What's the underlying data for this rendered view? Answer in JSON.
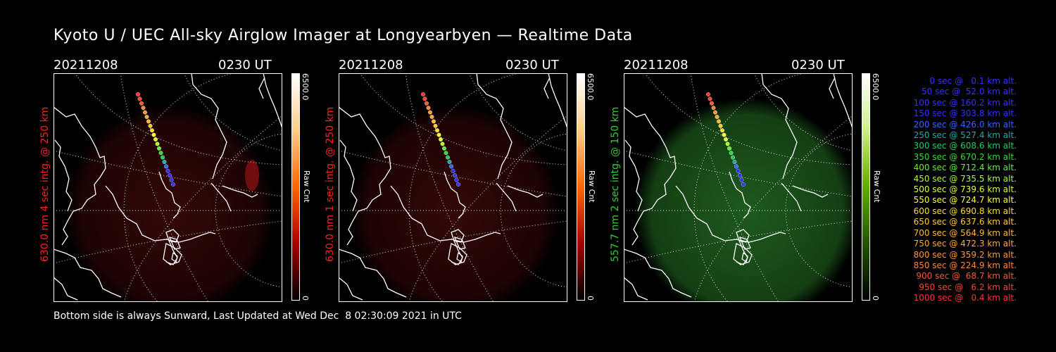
{
  "title": "Kyoto U / UEC All-sky Airglow Imager at Longyearbyen — Realtime Data",
  "footer": "Bottom side is always Sunward, Last Updated at Wed Dec  8 02:30:09 2021 in UTC",
  "panels": [
    {
      "date": "20211208",
      "time": "0230 UT",
      "ylabel": "630.0 nm 4 sec intg. @ 250 km",
      "label_color": "#ff2020",
      "cbar_max": "6500.0",
      "cbar_min": "0",
      "cbar_unit": "Raw Cnt",
      "glow": "red"
    },
    {
      "date": "20211208",
      "time": "0230 UT",
      "ylabel": "630.0 nm 1 sec intg. @ 250 km",
      "label_color": "#ff2020",
      "cbar_max": "6500.0",
      "cbar_min": "0",
      "cbar_unit": "Raw Cnt",
      "glow": "red"
    },
    {
      "date": "20211208",
      "time": "0230 UT",
      "ylabel": "557.7 nm 2 sec intg. @ 150 km",
      "label_color": "#33cc33",
      "cbar_max": "6500.0",
      "cbar_min": "0",
      "cbar_unit": "Raw Cnt",
      "glow": "green"
    }
  ],
  "legend": [
    {
      "text": "   0 sec @   0.1 km alt.",
      "color": "#3333ff"
    },
    {
      "text": "  50 sec @  52.0 km alt.",
      "color": "#3333ff"
    },
    {
      "text": " 100 sec @ 160.2 km alt.",
      "color": "#3333ff"
    },
    {
      "text": " 150 sec @ 303.8 km alt.",
      "color": "#3333ff"
    },
    {
      "text": " 200 sec @ 426.0 km alt.",
      "color": "#3366ff"
    },
    {
      "text": " 250 sec @ 527.4 km alt.",
      "color": "#22aaaa"
    },
    {
      "text": " 300 sec @ 608.6 km alt.",
      "color": "#22cc66"
    },
    {
      "text": " 350 sec @ 670.2 km alt.",
      "color": "#33dd33"
    },
    {
      "text": " 400 sec @ 712.4 km alt.",
      "color": "#66ee33"
    },
    {
      "text": " 450 sec @ 735.5 km alt.",
      "color": "#aaff33"
    },
    {
      "text": " 500 sec @ 739.6 km alt.",
      "color": "#ddff33"
    },
    {
      "text": " 550 sec @ 724.7 km alt.",
      "color": "#ffff33"
    },
    {
      "text": " 600 sec @ 690.8 km alt.",
      "color": "#ffdd22"
    },
    {
      "text": " 650 sec @ 637.6 km alt.",
      "color": "#ffcc33"
    },
    {
      "text": " 700 sec @ 564.9 km alt.",
      "color": "#ffbb33"
    },
    {
      "text": " 750 sec @ 472.3 km alt.",
      "color": "#ffaa33"
    },
    {
      "text": " 800 sec @ 359.2 km alt.",
      "color": "#ff9933"
    },
    {
      "text": " 850 sec @ 224.9 km alt.",
      "color": "#ff8833"
    },
    {
      "text": " 900 sec @  68.7 km alt.",
      "color": "#ff5533"
    },
    {
      "text": " 950 sec @   6.2 km alt.",
      "color": "#ff4433"
    },
    {
      "text": "1000 sec @   0.4 km alt.",
      "color": "#ff3333"
    }
  ]
}
